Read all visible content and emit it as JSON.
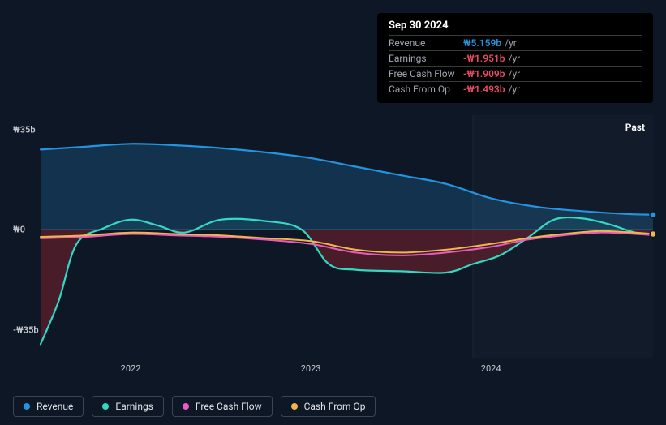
{
  "tooltip": {
    "date": "Sep 30 2024",
    "rows": [
      {
        "label": "Revenue",
        "value": "₩5.159b",
        "unit": "/yr",
        "color": "#2394df"
      },
      {
        "label": "Earnings",
        "value": "-₩1.951b",
        "unit": "/yr",
        "color": "#e64a66"
      },
      {
        "label": "Free Cash Flow",
        "value": "-₩1.909b",
        "unit": "/yr",
        "color": "#e64a66"
      },
      {
        "label": "Cash From Op",
        "value": "-₩1.493b",
        "unit": "/yr",
        "color": "#e64a66"
      }
    ]
  },
  "chart": {
    "type": "line",
    "background_color": "#0e1726",
    "y_axis": {
      "min": -45,
      "max": 40,
      "ticks": [
        {
          "v": 35,
          "label": "₩35b"
        },
        {
          "v": 0,
          "label": "₩0"
        },
        {
          "v": -35,
          "label": "-₩35b"
        }
      ],
      "zero_line_color": "#5e6470"
    },
    "x_axis": {
      "min": 2021.5,
      "max": 2024.9,
      "ticks": [
        {
          "v": 2022,
          "label": "2022"
        },
        {
          "v": 2023,
          "label": "2023"
        },
        {
          "v": 2024,
          "label": "2024"
        }
      ],
      "future_start": 2023.9
    },
    "past_label": "Past",
    "series": [
      {
        "name": "Revenue",
        "color": "#2394df",
        "width": 2.2,
        "fill_to_zero": true,
        "fill_color": "rgba(35,148,223,0.22)",
        "data": [
          [
            2021.5,
            28
          ],
          [
            2021.75,
            29
          ],
          [
            2022.0,
            30
          ],
          [
            2022.25,
            29.5
          ],
          [
            2022.5,
            28.5
          ],
          [
            2022.75,
            27
          ],
          [
            2023.0,
            25
          ],
          [
            2023.25,
            22
          ],
          [
            2023.5,
            19
          ],
          [
            2023.75,
            16
          ],
          [
            2024.0,
            11
          ],
          [
            2024.25,
            8
          ],
          [
            2024.5,
            6.5
          ],
          [
            2024.75,
            5.5
          ],
          [
            2024.9,
            5.2
          ]
        ],
        "end_marker": true
      },
      {
        "name": "Earnings",
        "color": "#32d9c3",
        "width": 2.2,
        "fill_neg": "rgba(180,40,50,0.35)",
        "fill_pos": "rgba(50,217,195,0.08)",
        "data": [
          [
            2021.5,
            -40
          ],
          [
            2021.6,
            -25
          ],
          [
            2021.7,
            -5
          ],
          [
            2021.85,
            0.5
          ],
          [
            2022.0,
            3.5
          ],
          [
            2022.15,
            1.5
          ],
          [
            2022.3,
            -1
          ],
          [
            2022.5,
            3.5
          ],
          [
            2022.75,
            3
          ],
          [
            2022.95,
            0
          ],
          [
            2023.1,
            -12
          ],
          [
            2023.25,
            -14
          ],
          [
            2023.5,
            -14.5
          ],
          [
            2023.75,
            -15
          ],
          [
            2023.9,
            -12
          ],
          [
            2024.05,
            -9
          ],
          [
            2024.2,
            -3
          ],
          [
            2024.35,
            3.5
          ],
          [
            2024.5,
            4
          ],
          [
            2024.65,
            2
          ],
          [
            2024.8,
            -1
          ],
          [
            2024.9,
            -2
          ]
        ]
      },
      {
        "name": "Free Cash Flow",
        "color": "#e85cc0",
        "width": 2,
        "data": [
          [
            2021.5,
            -3
          ],
          [
            2021.75,
            -2.5
          ],
          [
            2022.0,
            -1.5
          ],
          [
            2022.25,
            -2
          ],
          [
            2022.5,
            -2.5
          ],
          [
            2022.75,
            -3.5
          ],
          [
            2023.0,
            -5
          ],
          [
            2023.25,
            -8
          ],
          [
            2023.5,
            -9
          ],
          [
            2023.75,
            -8
          ],
          [
            2024.0,
            -6
          ],
          [
            2024.2,
            -3.5
          ],
          [
            2024.4,
            -2
          ],
          [
            2024.6,
            -1
          ],
          [
            2024.8,
            -1.5
          ],
          [
            2024.9,
            -1.9
          ]
        ],
        "end_marker": true
      },
      {
        "name": "Cash From Op",
        "color": "#eeb64e",
        "width": 2,
        "data": [
          [
            2021.5,
            -2.5
          ],
          [
            2021.75,
            -2
          ],
          [
            2022.0,
            -1
          ],
          [
            2022.25,
            -1.5
          ],
          [
            2022.5,
            -2
          ],
          [
            2022.75,
            -3
          ],
          [
            2023.0,
            -4
          ],
          [
            2023.25,
            -7
          ],
          [
            2023.5,
            -8
          ],
          [
            2023.75,
            -7
          ],
          [
            2024.0,
            -5
          ],
          [
            2024.2,
            -3
          ],
          [
            2024.4,
            -1.5
          ],
          [
            2024.6,
            -0.5
          ],
          [
            2024.8,
            -1
          ],
          [
            2024.9,
            -1.5
          ]
        ],
        "end_marker": true
      }
    ]
  },
  "legend": [
    {
      "label": "Revenue",
      "color": "#2394df"
    },
    {
      "label": "Earnings",
      "color": "#32d9c3"
    },
    {
      "label": "Free Cash Flow",
      "color": "#e85cc0"
    },
    {
      "label": "Cash From Op",
      "color": "#eeb64e"
    }
  ]
}
